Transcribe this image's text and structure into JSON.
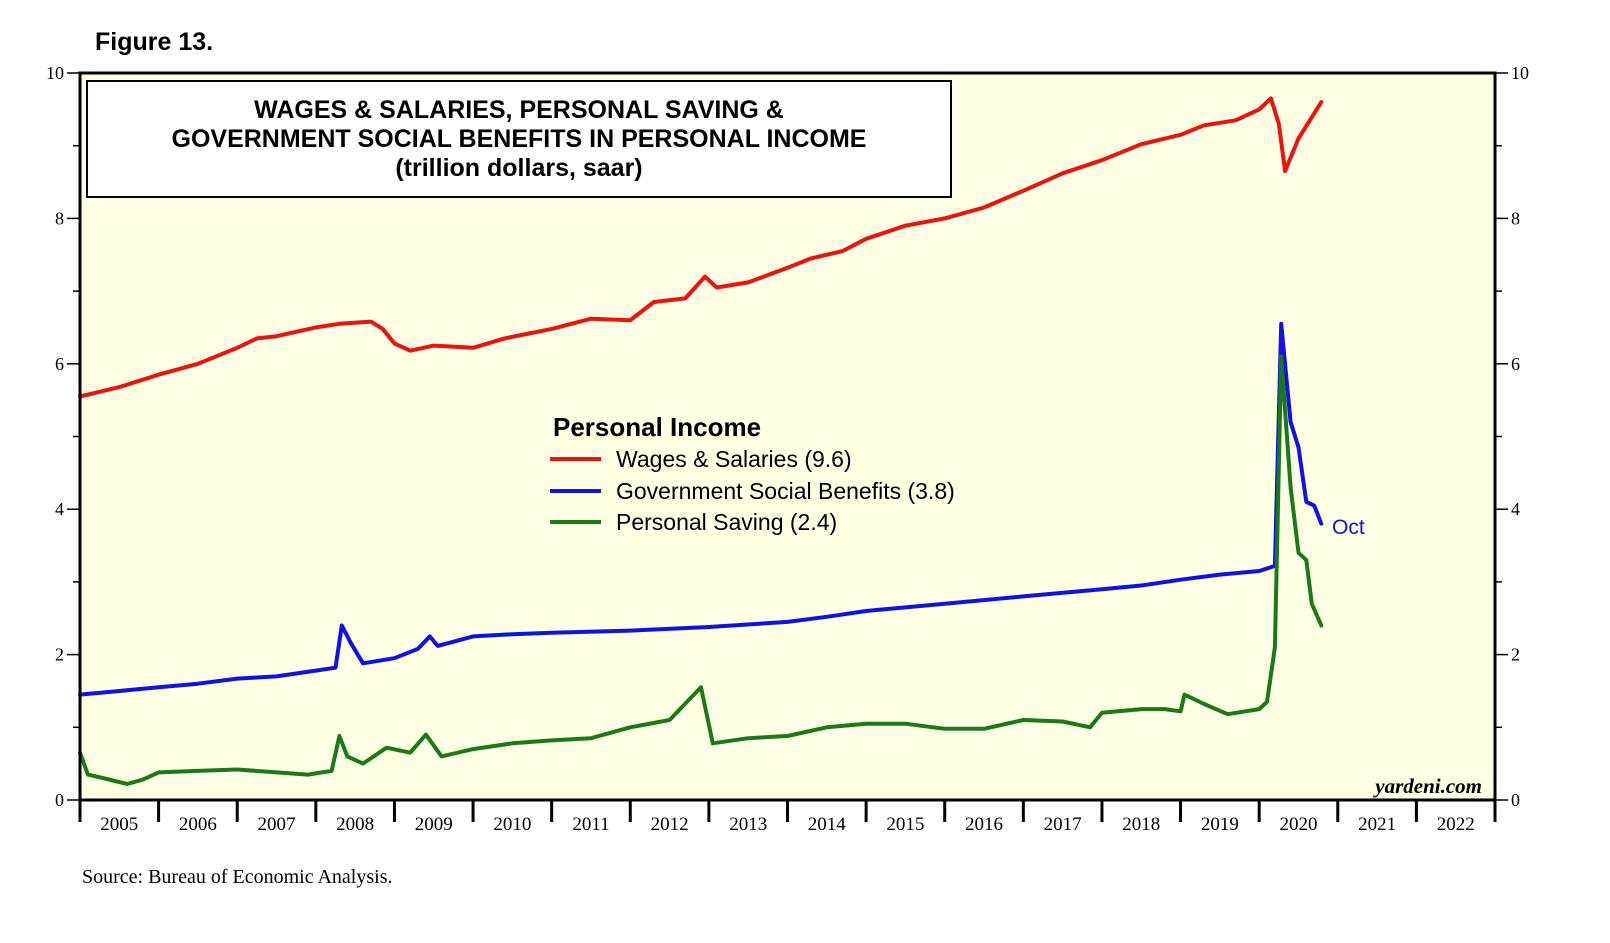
{
  "figure_label": "Figure 13.",
  "source": "Source: Bureau of Economic Analysis.",
  "chart_data": {
    "type": "line",
    "title_lines": [
      "WAGES & SALARIES, PERSONAL SAVING &",
      "GOVERNMENT SOCIAL BENEFITS IN PERSONAL INCOME",
      "(trillion dollars, saar)"
    ],
    "legend_title": "Personal Income",
    "credit": "yardeni.com",
    "annotation": {
      "text": "Oct",
      "series": "Government Social Benefits",
      "x": 2020.79,
      "y": 3.8,
      "color": "#1010ee"
    },
    "xlim": [
      2005.0,
      2023.0
    ],
    "ylim": [
      0,
      10
    ],
    "y_ticks": [
      0,
      2,
      4,
      6,
      8,
      10
    ],
    "y_tick_labels": [
      "0",
      "2",
      "4",
      "6",
      "8",
      "10"
    ],
    "x_year_labels": [
      "2005",
      "2006",
      "2007",
      "2008",
      "2009",
      "2010",
      "2011",
      "2012",
      "2013",
      "2014",
      "2015",
      "2016",
      "2017",
      "2018",
      "2019",
      "2020",
      "2021",
      "2022"
    ],
    "series": [
      {
        "name": "Wages & Salaries",
        "legend_label": "Wages & Salaries (9.6)",
        "color": "#ee1111",
        "points": [
          [
            2005.0,
            5.55
          ],
          [
            2005.5,
            5.68
          ],
          [
            2006.0,
            5.85
          ],
          [
            2006.5,
            6.0
          ],
          [
            2007.0,
            6.22
          ],
          [
            2007.25,
            6.35
          ],
          [
            2007.5,
            6.38
          ],
          [
            2008.0,
            6.5
          ],
          [
            2008.3,
            6.55
          ],
          [
            2008.7,
            6.58
          ],
          [
            2008.85,
            6.48
          ],
          [
            2009.0,
            6.28
          ],
          [
            2009.2,
            6.18
          ],
          [
            2009.5,
            6.25
          ],
          [
            2010.0,
            6.22
          ],
          [
            2010.4,
            6.35
          ],
          [
            2011.0,
            6.48
          ],
          [
            2011.5,
            6.62
          ],
          [
            2012.0,
            6.6
          ],
          [
            2012.3,
            6.85
          ],
          [
            2012.7,
            6.9
          ],
          [
            2012.95,
            7.2
          ],
          [
            2013.1,
            7.05
          ],
          [
            2013.5,
            7.12
          ],
          [
            2014.0,
            7.32
          ],
          [
            2014.3,
            7.45
          ],
          [
            2014.7,
            7.55
          ],
          [
            2015.0,
            7.72
          ],
          [
            2015.5,
            7.9
          ],
          [
            2016.0,
            8.0
          ],
          [
            2016.5,
            8.15
          ],
          [
            2017.0,
            8.38
          ],
          [
            2017.5,
            8.62
          ],
          [
            2018.0,
            8.8
          ],
          [
            2018.5,
            9.02
          ],
          [
            2019.0,
            9.15
          ],
          [
            2019.3,
            9.28
          ],
          [
            2019.7,
            9.35
          ],
          [
            2020.0,
            9.5
          ],
          [
            2020.15,
            9.65
          ],
          [
            2020.25,
            9.3
          ],
          [
            2020.33,
            8.65
          ],
          [
            2020.5,
            9.1
          ],
          [
            2020.79,
            9.6
          ]
        ]
      },
      {
        "name": "Government Social Benefits",
        "legend_label": "Government Social Benefits (3.8)",
        "color": "#1010ee",
        "points": [
          [
            2005.0,
            1.45
          ],
          [
            2005.5,
            1.5
          ],
          [
            2006.0,
            1.55
          ],
          [
            2006.5,
            1.6
          ],
          [
            2007.0,
            1.67
          ],
          [
            2007.5,
            1.7
          ],
          [
            2008.0,
            1.78
          ],
          [
            2008.25,
            1.82
          ],
          [
            2008.33,
            2.4
          ],
          [
            2008.45,
            2.15
          ],
          [
            2008.6,
            1.88
          ],
          [
            2009.0,
            1.95
          ],
          [
            2009.3,
            2.08
          ],
          [
            2009.45,
            2.25
          ],
          [
            2009.55,
            2.12
          ],
          [
            2010.0,
            2.25
          ],
          [
            2010.5,
            2.28
          ],
          [
            2011.0,
            2.3
          ],
          [
            2012.0,
            2.33
          ],
          [
            2013.0,
            2.38
          ],
          [
            2014.0,
            2.45
          ],
          [
            2014.5,
            2.52
          ],
          [
            2015.0,
            2.6
          ],
          [
            2016.0,
            2.7
          ],
          [
            2017.0,
            2.8
          ],
          [
            2018.0,
            2.9
          ],
          [
            2018.5,
            2.95
          ],
          [
            2019.0,
            3.03
          ],
          [
            2019.5,
            3.1
          ],
          [
            2020.0,
            3.15
          ],
          [
            2020.2,
            3.22
          ],
          [
            2020.28,
            6.55
          ],
          [
            2020.4,
            5.2
          ],
          [
            2020.5,
            4.85
          ],
          [
            2020.6,
            4.1
          ],
          [
            2020.7,
            4.05
          ],
          [
            2020.79,
            3.8
          ]
        ]
      },
      {
        "name": "Personal Saving",
        "legend_label": "Personal Saving (2.4)",
        "color": "#1a7a1a",
        "points": [
          [
            2005.0,
            0.65
          ],
          [
            2005.1,
            0.35
          ],
          [
            2005.3,
            0.3
          ],
          [
            2005.6,
            0.22
          ],
          [
            2005.8,
            0.28
          ],
          [
            2006.0,
            0.38
          ],
          [
            2006.5,
            0.4
          ],
          [
            2007.0,
            0.42
          ],
          [
            2007.5,
            0.38
          ],
          [
            2007.9,
            0.35
          ],
          [
            2008.2,
            0.4
          ],
          [
            2008.3,
            0.88
          ],
          [
            2008.4,
            0.6
          ],
          [
            2008.6,
            0.5
          ],
          [
            2008.9,
            0.72
          ],
          [
            2009.2,
            0.65
          ],
          [
            2009.4,
            0.9
          ],
          [
            2009.6,
            0.6
          ],
          [
            2010.0,
            0.7
          ],
          [
            2010.5,
            0.78
          ],
          [
            2011.0,
            0.82
          ],
          [
            2011.5,
            0.85
          ],
          [
            2012.0,
            1.0
          ],
          [
            2012.5,
            1.1
          ],
          [
            2012.9,
            1.55
          ],
          [
            2013.05,
            0.78
          ],
          [
            2013.5,
            0.85
          ],
          [
            2014.0,
            0.88
          ],
          [
            2014.5,
            1.0
          ],
          [
            2015.0,
            1.05
          ],
          [
            2015.5,
            1.05
          ],
          [
            2016.0,
            0.98
          ],
          [
            2016.5,
            0.98
          ],
          [
            2017.0,
            1.1
          ],
          [
            2017.5,
            1.08
          ],
          [
            2017.85,
            1.0
          ],
          [
            2018.0,
            1.2
          ],
          [
            2018.5,
            1.25
          ],
          [
            2018.8,
            1.25
          ],
          [
            2019.0,
            1.22
          ],
          [
            2019.05,
            1.45
          ],
          [
            2019.3,
            1.32
          ],
          [
            2019.6,
            1.18
          ],
          [
            2020.0,
            1.25
          ],
          [
            2020.1,
            1.35
          ],
          [
            2020.2,
            2.1
          ],
          [
            2020.28,
            6.1
          ],
          [
            2020.4,
            4.3
          ],
          [
            2020.5,
            3.4
          ],
          [
            2020.6,
            3.3
          ],
          [
            2020.67,
            2.7
          ],
          [
            2020.79,
            2.4
          ]
        ]
      }
    ]
  }
}
